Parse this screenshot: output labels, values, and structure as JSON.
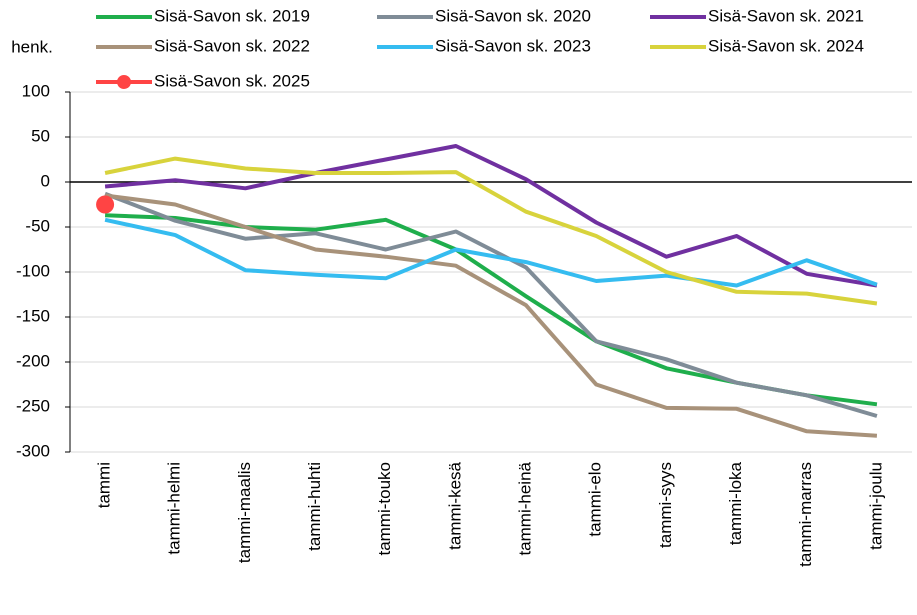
{
  "chart_data": {
    "type": "line",
    "y_unit_label": "henk.",
    "categories": [
      "tammi",
      "tammi-helmi",
      "tammi-maalis",
      "tammi-huhti",
      "tammi-touko",
      "tammi-kesä",
      "tammi-heinä",
      "tammi-elo",
      "tammi-syys",
      "tammi-loka",
      "tammi-marras",
      "tammi-joulu"
    ],
    "series": [
      {
        "name": "Sisä-Savon sk. 2019",
        "color": "#1fae4c",
        "values": [
          -37,
          -40,
          -50,
          -53,
          -42,
          -75,
          -127,
          -177,
          -207,
          -223,
          -237,
          -247
        ]
      },
      {
        "name": "Sisä-Savon sk. 2020",
        "color": "#7f8c97",
        "values": [
          -13,
          -43,
          -63,
          -57,
          -75,
          -55,
          -95,
          -177,
          -197,
          -223,
          -237,
          -260
        ]
      },
      {
        "name": "Sisä-Savon sk. 2021",
        "color": "#7030a0",
        "values": [
          -5,
          2,
          -7,
          10,
          25,
          40,
          3,
          -45,
          -83,
          -60,
          -102,
          -115
        ]
      },
      {
        "name": "Sisä-Savon sk. 2022",
        "color": "#a8927a",
        "values": [
          -15,
          -25,
          -50,
          -75,
          -83,
          -93,
          -137,
          -225,
          -251,
          -252,
          -277,
          -282
        ]
      },
      {
        "name": "Sisä-Savon sk. 2023",
        "color": "#35bcf0",
        "values": [
          -42,
          -59,
          -98,
          -103,
          -107,
          -75,
          -89,
          -110,
          -104,
          -115,
          -87,
          -114
        ]
      },
      {
        "name": "Sisä-Savon sk. 2024",
        "color": "#d8d33c",
        "values": [
          10,
          26,
          15,
          10,
          10,
          11,
          -33,
          -60,
          -100,
          -122,
          -124,
          -135
        ]
      },
      {
        "name": "Sisä-Savon sk. 2025",
        "color": "#ff4444",
        "marker": true,
        "values": [
          -25,
          null,
          null,
          null,
          null,
          null,
          null,
          null,
          null,
          null,
          null,
          null
        ]
      }
    ],
    "ylim": [
      -300,
      100
    ],
    "yticks": [
      -300,
      -250,
      -200,
      -150,
      -100,
      -50,
      0,
      50,
      100
    ],
    "grid": true
  }
}
